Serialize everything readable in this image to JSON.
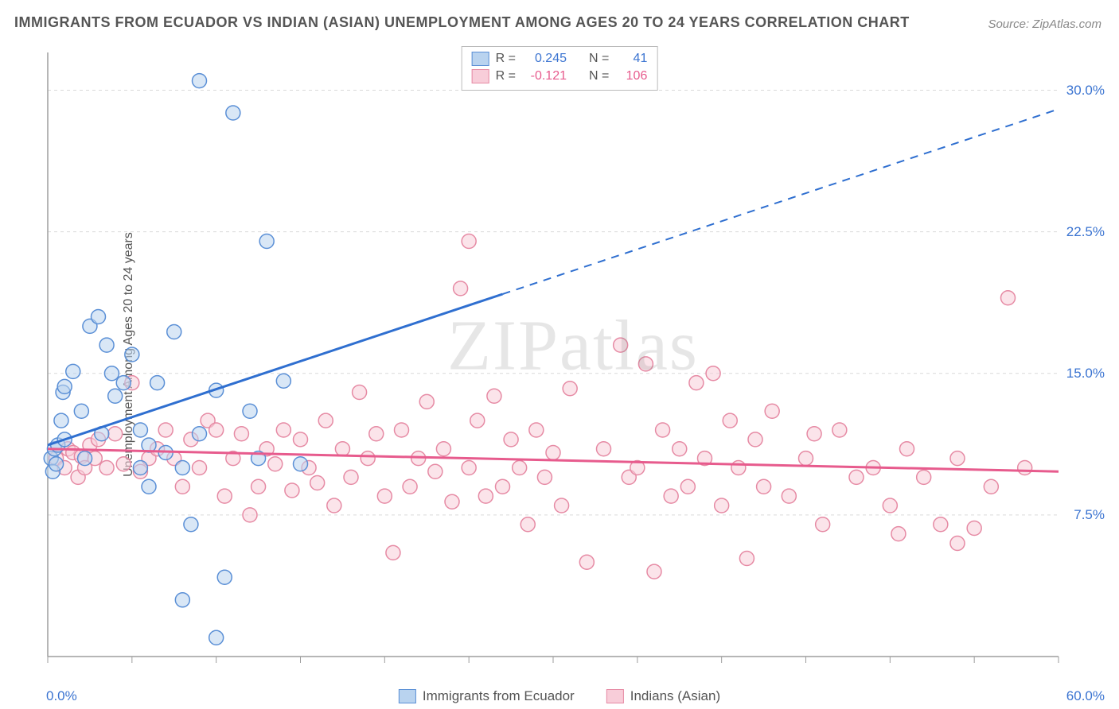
{
  "title": "IMMIGRANTS FROM ECUADOR VS INDIAN (ASIAN) UNEMPLOYMENT AMONG AGES 20 TO 24 YEARS CORRELATION CHART",
  "source": "Source: ZipAtlas.com",
  "ylabel": "Unemployment Among Ages 20 to 24 years",
  "watermark": "ZIPatlas",
  "chart": {
    "type": "scatter",
    "xlim": [
      0,
      60
    ],
    "ylim": [
      0,
      32
    ],
    "xtick_positions": [
      0,
      5,
      10,
      15,
      20,
      25,
      30,
      35,
      40,
      45,
      50,
      55,
      60
    ],
    "xtick_labels_shown": {
      "0": "0.0%",
      "60": "60.0%"
    },
    "ytick_positions": [
      7.5,
      15.0,
      22.5,
      30.0
    ],
    "ytick_labels": [
      "7.5%",
      "15.0%",
      "22.5%",
      "30.0%"
    ],
    "grid_color": "#d9d9d9",
    "axis_color": "#9e9e9e",
    "background": "#ffffff",
    "marker_radius": 9,
    "marker_stroke_blue": "#5a8fd6",
    "marker_fill_blue": "#b9d3ef",
    "marker_stroke_pink": "#e68aa4",
    "marker_fill_pink": "#f8cdd9",
    "trend_blue": "#2f6fd0",
    "trend_pink": "#e75b8d",
    "text_blue": "#3b74d1",
    "text_pink": "#e75b8d"
  },
  "legend_top": {
    "rows": [
      {
        "swatch_fill": "#b9d3ef",
        "swatch_stroke": "#5a8fd6",
        "r_label": "R =",
        "r_val": "0.245",
        "n_label": "N =",
        "n_val": "41",
        "val_color": "#3b74d1"
      },
      {
        "swatch_fill": "#f8cdd9",
        "swatch_stroke": "#e68aa4",
        "r_label": "R =",
        "r_val": "-0.121",
        "n_label": "N =",
        "n_val": "106",
        "val_color": "#e75b8d"
      }
    ]
  },
  "legend_bottom": {
    "items": [
      {
        "swatch_fill": "#b9d3ef",
        "swatch_stroke": "#5a8fd6",
        "label": "Immigrants from Ecuador"
      },
      {
        "swatch_fill": "#f8cdd9",
        "swatch_stroke": "#e68aa4",
        "label": "Indians (Asian)"
      }
    ]
  },
  "series_blue": {
    "points": [
      [
        0.2,
        10.5
      ],
      [
        0.3,
        9.8
      ],
      [
        0.4,
        11.0
      ],
      [
        0.5,
        10.2
      ],
      [
        0.6,
        11.2
      ],
      [
        0.8,
        12.5
      ],
      [
        0.9,
        14.0
      ],
      [
        1.0,
        14.3
      ],
      [
        1.0,
        11.5
      ],
      [
        1.5,
        15.1
      ],
      [
        2.0,
        13.0
      ],
      [
        2.2,
        10.5
      ],
      [
        2.5,
        17.5
      ],
      [
        3.0,
        18.0
      ],
      [
        3.2,
        11.8
      ],
      [
        3.5,
        16.5
      ],
      [
        4.0,
        13.8
      ],
      [
        4.5,
        14.5
      ],
      [
        5.0,
        16.0
      ],
      [
        5.5,
        12.0
      ],
      [
        6.0,
        11.2
      ],
      [
        6.0,
        9.0
      ],
      [
        6.5,
        14.5
      ],
      [
        7.0,
        10.8
      ],
      [
        7.5,
        17.2
      ],
      [
        8.0,
        10.0
      ],
      [
        8.5,
        7.0
      ],
      [
        9.0,
        30.5
      ],
      [
        9.0,
        11.8
      ],
      [
        10.0,
        14.1
      ],
      [
        10.5,
        4.2
      ],
      [
        11.0,
        28.8
      ],
      [
        12.0,
        13.0
      ],
      [
        12.5,
        10.5
      ],
      [
        13.0,
        22.0
      ],
      [
        14.0,
        14.6
      ],
      [
        15.0,
        10.2
      ],
      [
        10.0,
        1.0
      ],
      [
        8.0,
        3.0
      ],
      [
        5.5,
        10.0
      ],
      [
        3.8,
        15.0
      ]
    ],
    "trend": {
      "x1": 0,
      "y1": 11.2,
      "x2": 27,
      "y2": 19.2,
      "x3": 60,
      "y3": 29.0
    }
  },
  "series_pink": {
    "points": [
      [
        0.5,
        10.5
      ],
      [
        1.0,
        10.0
      ],
      [
        1.2,
        11.0
      ],
      [
        1.5,
        10.8
      ],
      [
        1.8,
        9.5
      ],
      [
        2.0,
        10.6
      ],
      [
        2.2,
        10.0
      ],
      [
        2.5,
        11.2
      ],
      [
        2.8,
        10.5
      ],
      [
        3.0,
        11.5
      ],
      [
        3.5,
        10.0
      ],
      [
        4.0,
        11.8
      ],
      [
        4.5,
        10.2
      ],
      [
        5.0,
        14.5
      ],
      [
        5.5,
        9.8
      ],
      [
        6.0,
        10.5
      ],
      [
        6.5,
        11.0
      ],
      [
        7.0,
        12.0
      ],
      [
        7.5,
        10.5
      ],
      [
        8.0,
        9.0
      ],
      [
        8.5,
        11.5
      ],
      [
        9.0,
        10.0
      ],
      [
        9.5,
        12.5
      ],
      [
        10.0,
        12.0
      ],
      [
        10.5,
        8.5
      ],
      [
        11.0,
        10.5
      ],
      [
        11.5,
        11.8
      ],
      [
        12.0,
        7.5
      ],
      [
        12.5,
        9.0
      ],
      [
        13.0,
        11.0
      ],
      [
        13.5,
        10.2
      ],
      [
        14.0,
        12.0
      ],
      [
        14.5,
        8.8
      ],
      [
        15.0,
        11.5
      ],
      [
        15.5,
        10.0
      ],
      [
        16.0,
        9.2
      ],
      [
        16.5,
        12.5
      ],
      [
        17.0,
        8.0
      ],
      [
        17.5,
        11.0
      ],
      [
        18.0,
        9.5
      ],
      [
        18.5,
        14.0
      ],
      [
        19.0,
        10.5
      ],
      [
        19.5,
        11.8
      ],
      [
        20.0,
        8.5
      ],
      [
        20.5,
        5.5
      ],
      [
        21.0,
        12.0
      ],
      [
        21.5,
        9.0
      ],
      [
        22.0,
        10.5
      ],
      [
        22.5,
        13.5
      ],
      [
        23.0,
        9.8
      ],
      [
        23.5,
        11.0
      ],
      [
        24.0,
        8.2
      ],
      [
        24.5,
        19.5
      ],
      [
        25.0,
        10.0
      ],
      [
        25.0,
        22.0
      ],
      [
        25.5,
        12.5
      ],
      [
        26.0,
        8.5
      ],
      [
        26.5,
        13.8
      ],
      [
        27.0,
        9.0
      ],
      [
        27.5,
        11.5
      ],
      [
        28.0,
        10.0
      ],
      [
        28.5,
        7.0
      ],
      [
        29.0,
        12.0
      ],
      [
        29.5,
        9.5
      ],
      [
        30.0,
        10.8
      ],
      [
        30.5,
        8.0
      ],
      [
        31.0,
        14.2
      ],
      [
        32.0,
        5.0
      ],
      [
        33.0,
        11.0
      ],
      [
        34.0,
        16.5
      ],
      [
        34.5,
        9.5
      ],
      [
        35.0,
        10.0
      ],
      [
        35.5,
        15.5
      ],
      [
        36.0,
        4.5
      ],
      [
        36.5,
        12.0
      ],
      [
        37.0,
        8.5
      ],
      [
        37.5,
        11.0
      ],
      [
        38.0,
        9.0
      ],
      [
        38.5,
        14.5
      ],
      [
        39.0,
        10.5
      ],
      [
        39.5,
        15.0
      ],
      [
        40.0,
        8.0
      ],
      [
        40.5,
        12.5
      ],
      [
        41.0,
        10.0
      ],
      [
        41.5,
        5.2
      ],
      [
        42.0,
        11.5
      ],
      [
        42.5,
        9.0
      ],
      [
        43.0,
        13.0
      ],
      [
        44.0,
        8.5
      ],
      [
        45.0,
        10.5
      ],
      [
        45.5,
        11.8
      ],
      [
        46.0,
        7.0
      ],
      [
        47.0,
        12.0
      ],
      [
        48.0,
        9.5
      ],
      [
        49.0,
        10.0
      ],
      [
        50.0,
        8.0
      ],
      [
        50.5,
        6.5
      ],
      [
        51.0,
        11.0
      ],
      [
        52.0,
        9.5
      ],
      [
        53.0,
        7.0
      ],
      [
        54.0,
        10.5
      ],
      [
        55.0,
        6.8
      ],
      [
        56.0,
        9.0
      ],
      [
        57.0,
        19.0
      ],
      [
        58.0,
        10.0
      ],
      [
        54.0,
        6.0
      ]
    ],
    "trend": {
      "x1": 0,
      "y1": 11.0,
      "x2": 60,
      "y2": 9.8
    }
  }
}
